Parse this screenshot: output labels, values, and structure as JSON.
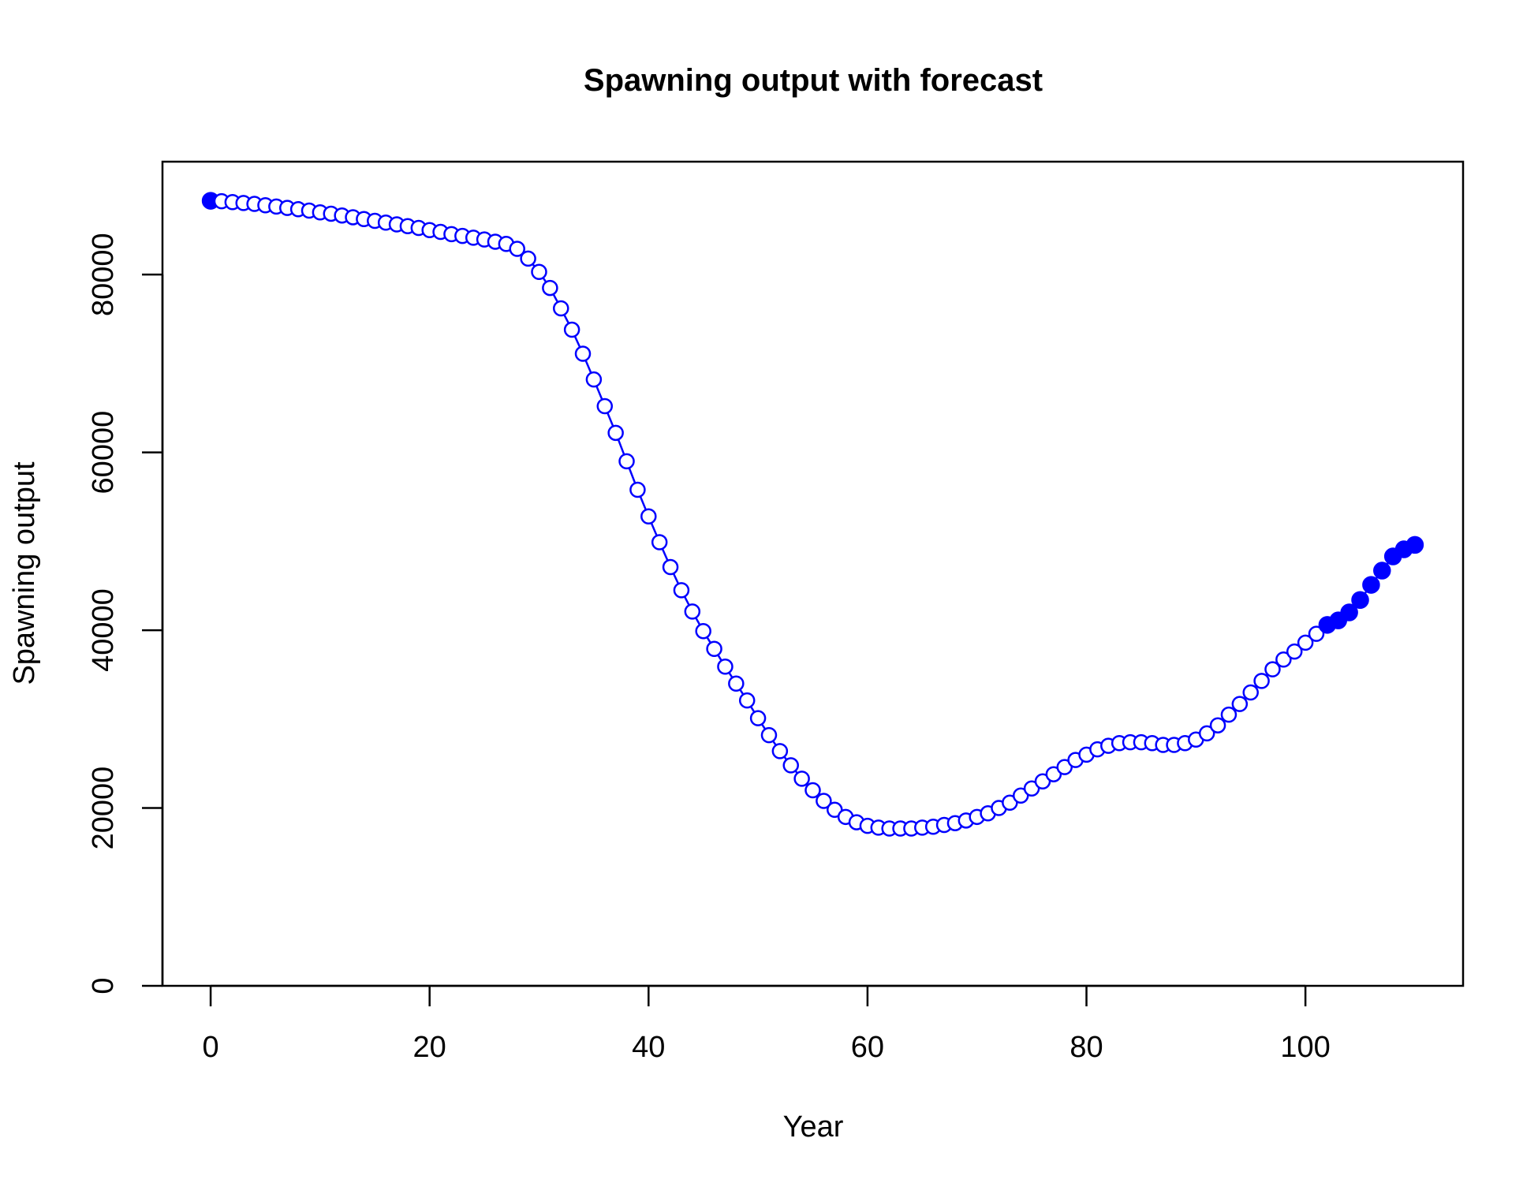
{
  "chart_data": {
    "type": "line",
    "title": "Spawning output with forecast",
    "xlabel": "Year",
    "ylabel": "Spawning output",
    "xlim": [
      -4.4,
      114.4
    ],
    "ylim": [
      0,
      92700
    ],
    "x_ticks": [
      0,
      20,
      40,
      60,
      80,
      100
    ],
    "y_ticks": [
      0,
      20000,
      40000,
      60000,
      80000
    ],
    "x_tick_labels": [
      "0",
      "20",
      "40",
      "60",
      "80",
      "100"
    ],
    "y_tick_labels": [
      "0",
      "20000",
      "40000",
      "60000",
      "80000"
    ],
    "series_color": "#0000ff",
    "marker_style": "open circles; first point and forecast years filled",
    "filled_points_x": [
      0,
      102,
      103,
      104,
      105,
      106,
      107,
      108,
      109,
      110
    ],
    "x": [
      0,
      1,
      2,
      3,
      4,
      5,
      6,
      7,
      8,
      9,
      10,
      11,
      12,
      13,
      14,
      15,
      16,
      17,
      18,
      19,
      20,
      21,
      22,
      23,
      24,
      25,
      26,
      27,
      28,
      29,
      30,
      31,
      32,
      33,
      34,
      35,
      36,
      37,
      38,
      39,
      40,
      41,
      42,
      43,
      44,
      45,
      46,
      47,
      48,
      49,
      50,
      51,
      52,
      53,
      54,
      55,
      56,
      57,
      58,
      59,
      60,
      61,
      62,
      63,
      64,
      65,
      66,
      67,
      68,
      69,
      70,
      71,
      72,
      73,
      74,
      75,
      76,
      77,
      78,
      79,
      80,
      81,
      82,
      83,
      84,
      85,
      86,
      87,
      88,
      89,
      90,
      91,
      92,
      93,
      94,
      95,
      96,
      97,
      98,
      99,
      100,
      101,
      102,
      103,
      104,
      105,
      106,
      107,
      108,
      109,
      110
    ],
    "y": [
      88300,
      88250,
      88150,
      88050,
      87950,
      87800,
      87650,
      87500,
      87350,
      87200,
      87000,
      86850,
      86650,
      86450,
      86250,
      86050,
      85850,
      85650,
      85450,
      85250,
      85000,
      84800,
      84550,
      84350,
      84150,
      83950,
      83700,
      83450,
      82900,
      81800,
      80300,
      78500,
      76200,
      73800,
      71100,
      68200,
      65200,
      62200,
      59000,
      55800,
      52800,
      49900,
      47100,
      44500,
      42100,
      39900,
      37900,
      35900,
      34000,
      32100,
      30100,
      28200,
      26400,
      24800,
      23300,
      22000,
      20800,
      19800,
      19000,
      18400,
      18000,
      17800,
      17700,
      17700,
      17700,
      17800,
      17900,
      18100,
      18300,
      18600,
      19000,
      19400,
      20000,
      20600,
      21400,
      22200,
      23000,
      23800,
      24600,
      25400,
      26000,
      26600,
      27000,
      27300,
      27400,
      27400,
      27300,
      27100,
      27100,
      27300,
      27700,
      28400,
      29300,
      30500,
      31700,
      33000,
      34300,
      35600,
      36700,
      37600,
      38600,
      39600,
      40600,
      41100,
      42000,
      43400,
      45100,
      46700,
      48300,
      49100,
      49600
    ],
    "series": [
      {
        "values": "y"
      }
    ]
  }
}
